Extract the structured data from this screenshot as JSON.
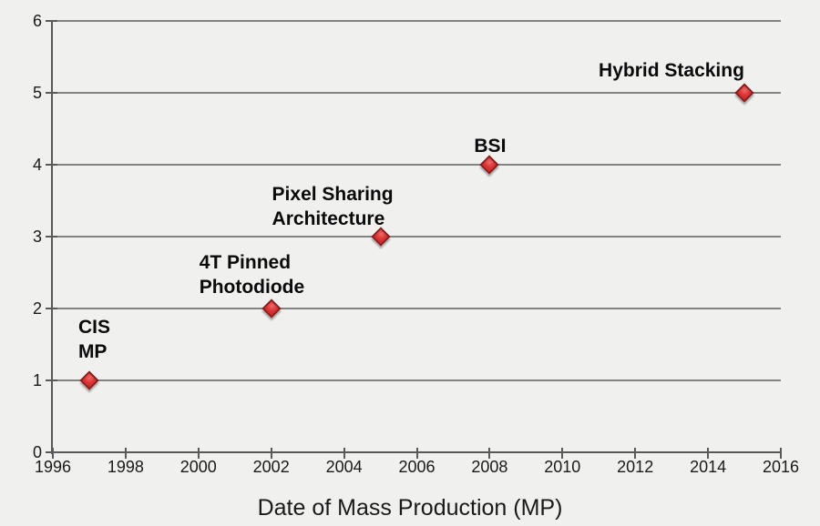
{
  "page": {
    "background": "#f0f0ee"
  },
  "chart_data": {
    "type": "scatter",
    "title": "",
    "xlabel": "Date of Mass Production (MP)",
    "ylabel": "",
    "xlim": [
      1996,
      2016
    ],
    "ylim": [
      0,
      6
    ],
    "x_ticks": [
      1996,
      1998,
      2000,
      2002,
      2004,
      2006,
      2008,
      2010,
      2012,
      2014,
      2016
    ],
    "y_ticks": [
      0,
      1,
      2,
      3,
      4,
      5,
      6
    ],
    "grid": "horizontal",
    "legend": "none",
    "marker": {
      "shape": "diamond",
      "fill": "#dc3232",
      "border": "#8a1a1a"
    },
    "colors": {
      "background": "#f0f0ee",
      "gridline": "#838383",
      "axis": "#595959",
      "text": "#1a1a1a"
    },
    "points": [
      {
        "label": "CIS MP",
        "label_lines": [
          "CIS",
          "MP"
        ],
        "x": 1997,
        "y": 1,
        "label_offset": [
          -12,
          -72
        ]
      },
      {
        "label": "4T Pinned Photodiode",
        "label_lines": [
          "4T Pinned",
          "Photodiode"
        ],
        "x": 2002,
        "y": 2,
        "label_offset": [
          -79,
          -64
        ]
      },
      {
        "label": "Pixel Sharing Architecture",
        "label_lines": [
          "Pixel Sharing",
          "Architecture"
        ],
        "x": 2005,
        "y": 3,
        "label_offset": [
          -119,
          -60
        ]
      },
      {
        "label": "BSI",
        "label_lines": [
          "BSI"
        ],
        "x": 2008,
        "y": 4,
        "label_offset": [
          -17,
          -34
        ]
      },
      {
        "label": "Hybrid Stacking",
        "label_lines": [
          "Hybrid Stacking"
        ],
        "x": 2015,
        "y": 5,
        "label_offset": [
          -160,
          -38
        ]
      }
    ]
  }
}
